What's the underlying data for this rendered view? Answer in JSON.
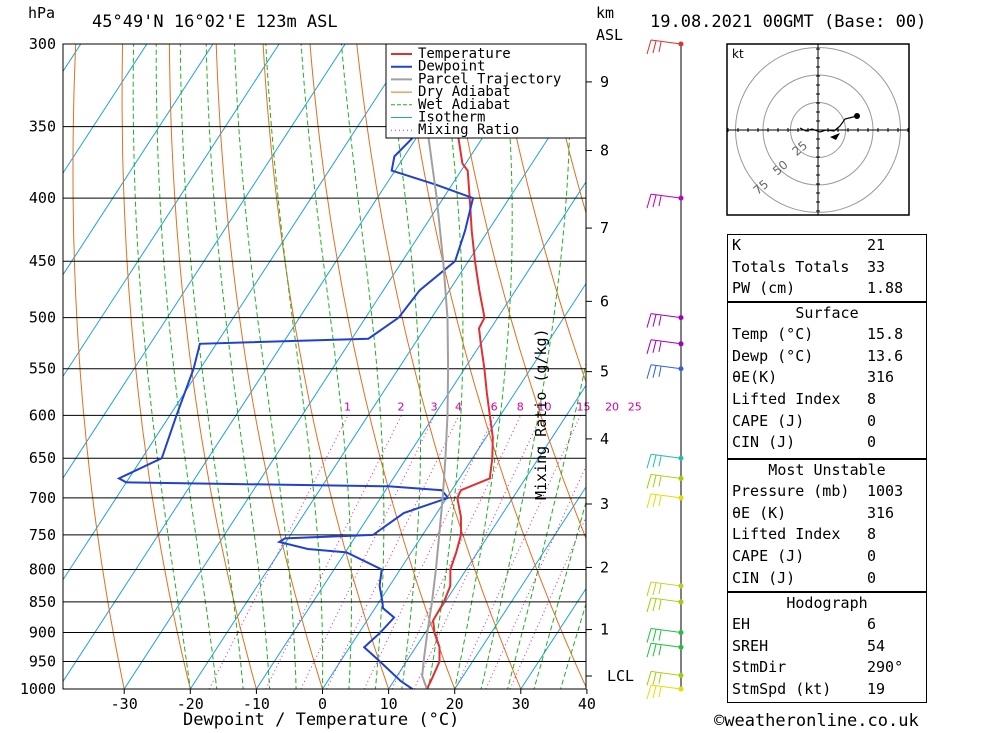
{
  "header": {
    "hpa_unit": "hPa",
    "location": "45°49'N  16°02'E  123m  ASL",
    "km_unit": "km",
    "asl_unit": "ASL",
    "datetime": "19.08.2021  00GMT  (Base: 00)"
  },
  "chart_data": {
    "type": "skew-t",
    "xlabel": "Dewpoint / Temperature (°C)",
    "ylabel_left": "hPa",
    "mixing_ratio_label": "Mixing Ratio (g/kg)",
    "pressure_ticks": [
      300,
      350,
      400,
      450,
      500,
      550,
      600,
      650,
      700,
      750,
      800,
      850,
      900,
      950,
      1000
    ],
    "temp_ticks": [
      -30,
      -20,
      -10,
      0,
      10,
      20,
      30,
      40
    ],
    "km_ticks": [
      {
        "label": "9",
        "p": 322
      },
      {
        "label": "8",
        "p": 366
      },
      {
        "label": "7",
        "p": 423
      },
      {
        "label": "6",
        "p": 485
      },
      {
        "label": "5",
        "p": 553
      },
      {
        "label": "4",
        "p": 627
      },
      {
        "label": "3",
        "p": 708
      },
      {
        "label": "2",
        "p": 797
      },
      {
        "label": "1",
        "p": 895
      },
      {
        "label": "LCL",
        "p": 976
      }
    ],
    "mixing_ratio_values": [
      "1",
      "2",
      "3",
      "4",
      "6",
      "8",
      "10",
      "15",
      "20",
      "25"
    ],
    "legend": [
      "Temperature",
      "Dewpoint",
      "Parcel Trajectory",
      "Dry Adiabat",
      "Wet Adiabat",
      "Isotherm",
      "Mixing Ratio"
    ],
    "legend_position": "top-center",
    "series": [
      {
        "name": "Temperature",
        "color": "#e03030",
        "points": [
          [
            1000,
            15.8
          ],
          [
            985,
            15.6
          ],
          [
            950,
            15
          ],
          [
            925,
            13.6
          ],
          [
            900,
            11.4
          ],
          [
            880,
            10.0
          ],
          [
            850,
            9.8
          ],
          [
            825,
            9.2
          ],
          [
            800,
            7.6
          ],
          [
            775,
            6.8
          ],
          [
            750,
            5.8
          ],
          [
            725,
            4.0
          ],
          [
            700,
            1.6
          ],
          [
            690,
            1.4
          ],
          [
            675,
            4.6
          ],
          [
            650,
            3.0
          ],
          [
            625,
            1.0
          ],
          [
            600,
            -1.6
          ],
          [
            575,
            -4.3
          ],
          [
            550,
            -7.0
          ],
          [
            525,
            -10.0
          ],
          [
            510,
            -11.8
          ],
          [
            500,
            -12.0
          ],
          [
            475,
            -15.5
          ],
          [
            450,
            -19.0
          ],
          [
            425,
            -22.5
          ],
          [
            400,
            -26.0
          ],
          [
            380,
            -29.0
          ],
          [
            375,
            -30.5
          ],
          [
            350,
            -35.0
          ],
          [
            325,
            -40.5
          ],
          [
            310,
            -44.0
          ],
          [
            300,
            -45.5
          ]
        ]
      },
      {
        "name": "Dewpoint",
        "color": "#2040d0",
        "points": [
          [
            1000,
            13.6
          ],
          [
            985,
            11.0
          ],
          [
            950,
            6.0
          ],
          [
            925,
            2.2
          ],
          [
            900,
            3.2
          ],
          [
            875,
            3.8
          ],
          [
            860,
            1.2
          ],
          [
            850,
            0.5
          ],
          [
            825,
            -1.5
          ],
          [
            800,
            -2.8
          ],
          [
            775,
            -9.8
          ],
          [
            770,
            -16.0
          ],
          [
            760,
            -21.0
          ],
          [
            755,
            -20.5
          ],
          [
            750,
            -7.5
          ],
          [
            720,
            -5.0
          ],
          [
            700,
            0.2
          ],
          [
            690,
            -1.5
          ],
          [
            685,
            -10.0
          ],
          [
            680,
            -50.0
          ],
          [
            675,
            -51.5
          ],
          [
            650,
            -47.0
          ],
          [
            600,
            -49.0
          ],
          [
            550,
            -51.0
          ],
          [
            525,
            -52.5
          ],
          [
            520,
            -27.5
          ],
          [
            500,
            -25.0
          ],
          [
            475,
            -24.5
          ],
          [
            450,
            -22.0
          ],
          [
            425,
            -23.5
          ],
          [
            400,
            -25.5
          ],
          [
            390,
            -32.5
          ],
          [
            380,
            -40.5
          ],
          [
            370,
            -41.5
          ],
          [
            350,
            -40.0
          ],
          [
            340,
            -43.5
          ],
          [
            330,
            -45.5
          ],
          [
            310,
            -49.5
          ],
          [
            300,
            -50.5
          ]
        ]
      },
      {
        "name": "Parcel Trajectory",
        "color": "#a0a0a0",
        "points": [
          [
            1000,
            15.8
          ],
          [
            976,
            13.8
          ],
          [
            950,
            12.6
          ],
          [
            900,
            10.3
          ],
          [
            850,
            8.0
          ],
          [
            800,
            5.4
          ],
          [
            750,
            2.5
          ],
          [
            700,
            -0.6
          ],
          [
            650,
            -4.1
          ],
          [
            600,
            -8.0
          ],
          [
            550,
            -12.5
          ],
          [
            500,
            -17.6
          ],
          [
            450,
            -23.8
          ],
          [
            400,
            -31.0
          ],
          [
            350,
            -39.5
          ],
          [
            300,
            -49.5
          ]
        ]
      }
    ],
    "wind_barbs": [
      {
        "p": 1000,
        "color": "#e0e000"
      },
      {
        "p": 975,
        "color": "#a0d000"
      },
      {
        "p": 925,
        "color": "#20c040"
      },
      {
        "p": 900,
        "color": "#20c040"
      },
      {
        "p": 850,
        "color": "#a0d000"
      },
      {
        "p": 825,
        "color": "#c0d020"
      },
      {
        "p": 700,
        "color": "#e0e000"
      },
      {
        "p": 675,
        "color": "#a0d000"
      },
      {
        "p": 650,
        "color": "#20c0b0"
      },
      {
        "p": 550,
        "color": "#3060e0"
      },
      {
        "p": 525,
        "color": "#a000c0"
      },
      {
        "p": 500,
        "color": "#a000c0"
      },
      {
        "p": 400,
        "color": "#c000c0"
      },
      {
        "p": 300,
        "color": "#e03030"
      }
    ],
    "hodograph": {
      "unit_label": "kt",
      "rings": [
        "25",
        "50",
        "75"
      ]
    }
  },
  "indices": [
    {
      "label": "K",
      "value": "21"
    },
    {
      "label": "Totals Totals",
      "value": "33"
    },
    {
      "label": "PW (cm)",
      "value": "1.88"
    }
  ],
  "surface": {
    "title": "Surface",
    "rows": [
      {
        "label": "Temp (°C)",
        "value": "15.8"
      },
      {
        "label": "Dewp (°C)",
        "value": "13.6"
      },
      {
        "label": "θE(K)",
        "value": "316"
      },
      {
        "label": "Lifted Index",
        "value": "8"
      },
      {
        "label": "CAPE (J)",
        "value": "0"
      },
      {
        "label": "CIN (J)",
        "value": "0"
      }
    ]
  },
  "most_unstable": {
    "title": "Most Unstable",
    "rows": [
      {
        "label": "Pressure (mb)",
        "value": "1003"
      },
      {
        "label": "θE (K)",
        "value": "316"
      },
      {
        "label": "Lifted Index",
        "value": "8"
      },
      {
        "label": "CAPE (J)",
        "value": "0"
      },
      {
        "label": "CIN (J)",
        "value": "0"
      }
    ]
  },
  "hodograph_panel": {
    "title": "Hodograph",
    "rows": [
      {
        "label": "EH",
        "value": "6"
      },
      {
        "label": "SREH",
        "value": "54"
      },
      {
        "label": "StmDir",
        "value": "290°"
      },
      {
        "label": "StmSpd (kt)",
        "value": "19"
      }
    ]
  },
  "footer": {
    "copyright": "©weatheronline.co.uk"
  },
  "colors": {
    "temperature": "#e03030",
    "dewpoint": "#2040d0",
    "parcel": "#a0a0a0",
    "dry_adiabat": "#e07020",
    "wet_adiabat": "#20b020",
    "isotherm": "#20a0e0",
    "mixing_ratio": "#e020a0"
  }
}
